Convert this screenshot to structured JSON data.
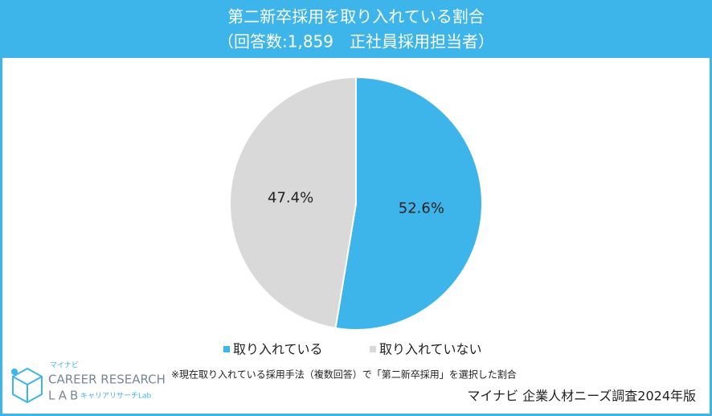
{
  "chart_data": {
    "type": "pie",
    "title": "第二新卒採用を取り入れている割合",
    "subtitle": "（回答数:1,859　正社員採用担当者）",
    "categories": [
      "取り入れている",
      "取り入れていない"
    ],
    "values": [
      52.6,
      47.4
    ],
    "value_labels": [
      "52.6%",
      "47.4%"
    ],
    "colors": [
      "#3db5ea",
      "#d9d9d9"
    ]
  },
  "footnote": "※現在取り入れている採用手法（複数回答）で「第二新卒採用」を選択した割合",
  "source": "マイナビ 企業人材ニーズ調査2024年版",
  "logo": {
    "brand": "マイナビ",
    "line1": "CAREER RESEARCH",
    "line2": "LAB",
    "sub": "キャリアリサーチLab"
  }
}
